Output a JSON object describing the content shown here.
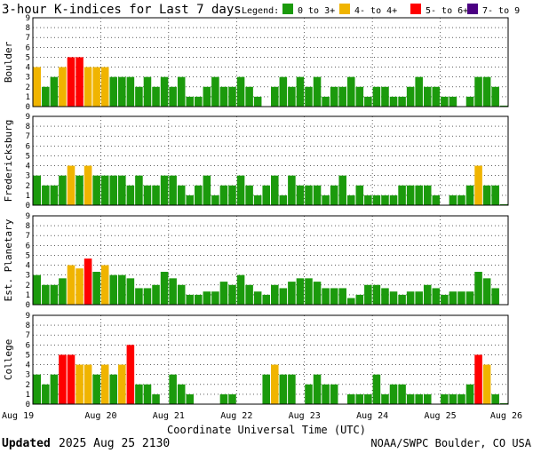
{
  "header": {
    "title": "3-hour K-indices for Last 7 days",
    "legend_label": "Legend:",
    "legend": [
      {
        "label": "0 to 3+",
        "color": "#1b9a0c"
      },
      {
        "label": "4- to 4+",
        "color": "#f0b400"
      },
      {
        "label": "5- to 6+",
        "color": "#ff0000"
      },
      {
        "label": "7- to 9",
        "color": "#4b0082"
      }
    ]
  },
  "footer": {
    "updated_label": "Updated",
    "updated_value": "2025 Aug 25 2130",
    "credit": "NOAA/SWPC Boulder, CO USA"
  },
  "chart_data": {
    "type": "bar",
    "xlabel": "Coordinate Universal Time (UTC)",
    "x_ticks": [
      "Aug 19",
      "Aug 20",
      "Aug 21",
      "Aug 22",
      "Aug 23",
      "Aug 24",
      "Aug 25",
      "Aug 26"
    ],
    "ylim": [
      0,
      9
    ],
    "y_ticks": [
      0,
      1,
      2,
      3,
      4,
      5,
      6,
      7,
      8,
      9
    ],
    "grid": true,
    "intervals_per_day": 8,
    "days": 7,
    "colors": {
      "low": "#1b9a0c",
      "mid": "#f0b400",
      "high": "#ff0000",
      "extreme": "#4b0082"
    },
    "panels": [
      {
        "name": "Boulder",
        "values": [
          4,
          2,
          3,
          4,
          5,
          5,
          4,
          4,
          4,
          3,
          3,
          3,
          2,
          3,
          2,
          3,
          2,
          3,
          1,
          1,
          2,
          3,
          2,
          2,
          3,
          2,
          1,
          0,
          2,
          3,
          2,
          3,
          2,
          3,
          1,
          2,
          2,
          3,
          2,
          1,
          2,
          2,
          1,
          1,
          2,
          3,
          2,
          2,
          1,
          1,
          0,
          1,
          3,
          3,
          2,
          0.1
        ]
      },
      {
        "name": "Fredericksburg",
        "values": [
          3,
          2,
          2,
          3,
          4,
          3,
          4,
          3,
          3,
          3,
          3,
          2,
          3,
          2,
          2,
          3,
          3,
          2,
          1,
          2,
          3,
          1,
          2,
          2,
          3,
          2,
          1,
          2,
          3,
          1,
          3,
          2,
          2,
          2,
          1,
          2,
          3,
          1,
          2,
          1,
          1,
          1,
          1,
          2,
          2,
          2,
          2,
          1,
          0,
          1,
          1,
          2,
          4,
          2,
          2,
          0.1
        ]
      },
      {
        "name": "Est. Planetary",
        "values": [
          3,
          2,
          2,
          2.67,
          4,
          3.67,
          4.67,
          3.33,
          4,
          3,
          3,
          2.67,
          1.67,
          1.67,
          2,
          3.33,
          2.67,
          2,
          1,
          1,
          1.33,
          1.33,
          2.33,
          2,
          3,
          2,
          1.33,
          1,
          2,
          1.67,
          2.33,
          2.67,
          2.67,
          2.33,
          1.67,
          1.67,
          1.67,
          0.67,
          1,
          2,
          2,
          1.67,
          1.33,
          1,
          1.33,
          1.33,
          2,
          1.67,
          1,
          1.33,
          1.33,
          1.33,
          3.33,
          2.67,
          1.67
        ]
      },
      {
        "name": "College",
        "values": [
          3,
          2,
          3,
          5,
          5,
          4,
          4,
          3,
          4,
          3,
          4,
          6,
          2,
          2,
          1,
          0,
          3,
          2,
          1,
          0,
          0,
          0,
          1,
          1,
          0,
          0,
          0,
          3,
          4,
          3,
          3,
          0,
          2,
          3,
          2,
          2,
          0,
          1,
          1,
          1,
          3,
          1,
          2,
          2,
          1,
          1,
          1,
          0,
          1,
          1,
          1,
          2,
          5,
          4,
          1,
          0.1
        ]
      }
    ]
  }
}
